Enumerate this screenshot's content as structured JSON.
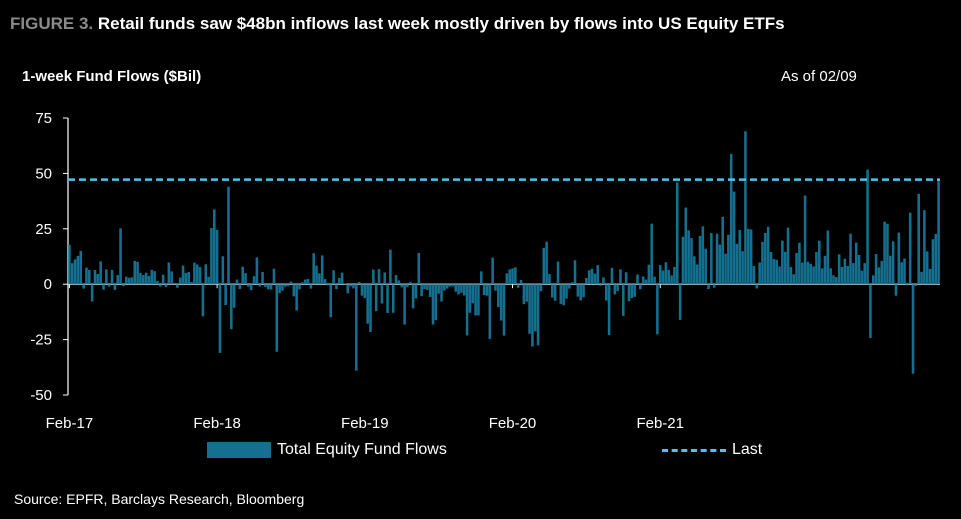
{
  "figure": {
    "label": "FIGURE 3.",
    "title": "Retail funds saw $48bn inflows last week mostly driven by flows into US Equity ETFs",
    "subtitle": "1-week Fund Flows ($Bil)",
    "as_of": "As of 02/09",
    "source": "Source: EPFR, Barclays Research, Bloomberg"
  },
  "colors": {
    "bar": "#15708f",
    "last_line": "#4fc3ef",
    "background": "#000000",
    "text": "#ffffff"
  },
  "chart_data": {
    "type": "bar",
    "title": "1-week Fund Flows ($Bil)",
    "xlabel": "",
    "ylabel": "",
    "ylim": [
      -50,
      75
    ],
    "yticks": [
      75,
      50,
      25,
      0,
      -25,
      -50
    ],
    "xticks": [
      "Feb-17",
      "Feb-18",
      "Feb-19",
      "Feb-20",
      "Feb-21"
    ],
    "x_range": [
      "2017-02",
      "2022-02"
    ],
    "legend": {
      "placement": "bottom",
      "entries": [
        "Total Equity Fund Flows",
        "Last"
      ]
    },
    "series": [
      {
        "name": "Total Equity Fund Flows",
        "type": "bar",
        "start_week": "2017-02",
        "frequency": "weekly",
        "values": [
          17.8,
          9.5,
          11.2,
          12.8,
          15.0,
          -2.0,
          7.5,
          6.4,
          -7.8,
          6.4,
          4.6,
          10.3,
          -2.5,
          6.7,
          -1.1,
          6.4,
          -2.6,
          4.1,
          25.2,
          -0.9,
          3.4,
          2.9,
          3.1,
          10.5,
          10.1,
          5.1,
          4.1,
          5.2,
          3.7,
          6.5,
          5.9,
          1.5,
          -1.1,
          4.3,
          -1.3,
          9.8,
          5.8,
          0.6,
          -1.6,
          3.0,
          8.4,
          5.1,
          5.5,
          1.0,
          9.7,
          8.9,
          7.7,
          -14.5,
          9.0,
          3.3,
          25.4,
          33.7,
          24.5,
          -31.0,
          12.6,
          -9.4,
          44.0,
          -20.3,
          -10.6,
          2.1,
          -2.2,
          7.9,
          5.0,
          -1.1,
          -2.7,
          3.6,
          12.1,
          -1.0,
          5.5,
          -1.3,
          -2.3,
          -2.4,
          7.0,
          -30.5,
          -4.0,
          -2.9,
          -1.1,
          -0.9,
          1.2,
          -5.5,
          -11.9,
          -2.3,
          0.9,
          2.1,
          2.4,
          -2.0,
          14.0,
          8.4,
          4.9,
          13.0,
          2.3,
          -0.5,
          -14.9,
          6.3,
          -2.2,
          2.8,
          5.2,
          0.3,
          -4.1,
          -1.0,
          -1.9,
          -39.0,
          1.0,
          -5.2,
          -6.3,
          -17.8,
          -21.6,
          6.6,
          -12.1,
          6.8,
          -8.7,
          5.3,
          -13.0,
          15.6,
          -12.9,
          4.1,
          1.7,
          -1.4,
          -18.2,
          -1.3,
          1.0,
          -10.9,
          -6.4,
          14.1,
          -5.4,
          -2.2,
          -2.6,
          -5.8,
          -18.2,
          -16.2,
          -4.3,
          -7.8,
          -2.9,
          -2.0,
          -1.1,
          -1.0,
          -3.4,
          -4.6,
          -3.9,
          -5.1,
          -23.1,
          -12.9,
          -8.6,
          -14.1,
          -14.1,
          5.8,
          -4.9,
          -5.2,
          -24.7,
          12.0,
          -2.9,
          -10.3,
          -16.4,
          -23.2,
          4.9,
          6.7,
          7.1,
          7.6,
          -1.6,
          1.9,
          -9.0,
          -7.9,
          -22.4,
          -28.1,
          -21.3,
          -27.6,
          -3.2,
          16.4,
          19.2,
          4.6,
          -6.0,
          -7.5,
          10.2,
          -8.9,
          -9.5,
          -6.5,
          -2.0,
          0.9,
          10.8,
          -5.6,
          -7.3,
          -5.9,
          2.8,
          6.3,
          7.0,
          4.8,
          8.6,
          -0.7,
          3.1,
          -7.4,
          -22.9,
          7.4,
          -4.6,
          -3.1,
          6.7,
          -14.3,
          5.4,
          -7.7,
          -6.2,
          -5.7,
          4.4,
          -2.3,
          3.5,
          2.1,
          8.8,
          27.3,
          3.4,
          -22.6,
          8.6,
          6.2,
          9.9,
          6.5,
          4.0,
          7.8,
          45.9,
          -16.1,
          21.4,
          34.6,
          24.3,
          20.8,
          12.6,
          8.9,
          21.8,
          26.1,
          16.0,
          -2.2,
          23.1,
          -1.6,
          22.8,
          17.9,
          30.4,
          13.8,
          22.3,
          58.8,
          41.8,
          18.2,
          24.5,
          14.9,
          69.0,
          25.0,
          24.7,
          8.2,
          -1.9,
          9.8,
          19.1,
          23.1,
          25.9,
          14.5,
          11.4,
          11.0,
          8.0,
          19.7,
          14.6,
          25.5,
          7.7,
          4.5,
          14.1,
          18.7,
          9.8,
          40.0,
          10.1,
          9.2,
          8.0,
          14.5,
          19.6,
          7.1,
          12.8,
          24.2,
          7.2,
          4.0,
          3.2,
          13.5,
          7.8,
          11.5,
          8.2,
          22.8,
          9.5,
          18.8,
          13.2,
          6.1,
          9.5,
          51.7,
          -24.3,
          4.0,
          13.6,
          7.6,
          10.5,
          28.2,
          27.3,
          12.8,
          19.4,
          -5.2,
          23.3,
          9.9,
          11.6,
          -0.5,
          32.3,
          -40.4,
          -0.8,
          40.8,
          5.6,
          33.4,
          14.8,
          6.9,
          20.3,
          22.7,
          47.2
        ]
      },
      {
        "name": "Last",
        "type": "hline",
        "value": 47.2
      }
    ]
  }
}
